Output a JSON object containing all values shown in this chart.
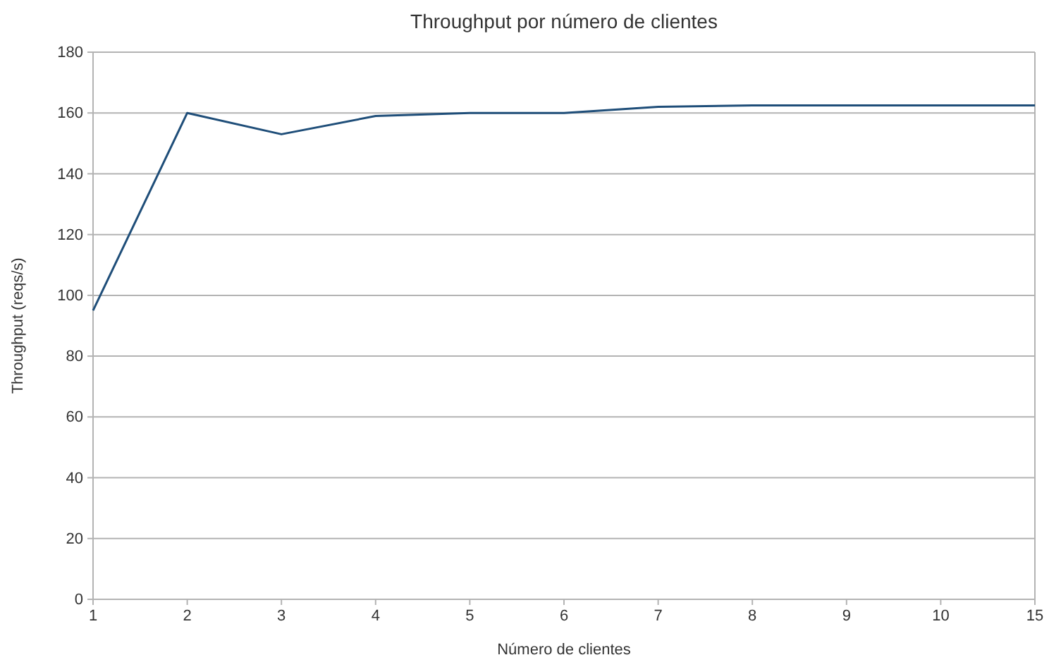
{
  "chart_data": {
    "type": "line",
    "title": "Throughput por número de clientes",
    "xlabel": "Número de clientes",
    "ylabel": "Throughput (reqs/s)",
    "categories": [
      "1",
      "2",
      "3",
      "4",
      "5",
      "6",
      "7",
      "8",
      "9",
      "10",
      "15"
    ],
    "series": [
      {
        "color": "#1f4e79",
        "values": [
          95,
          160,
          153,
          159,
          160,
          160,
          162,
          162.5,
          162.5,
          162.5,
          162.5
        ]
      }
    ],
    "ylim": [
      0,
      180
    ],
    "yticks": [
      0,
      20,
      40,
      60,
      80,
      100,
      120,
      140,
      160,
      180
    ],
    "grid": "y",
    "marker": "none",
    "line_style": "solid"
  }
}
